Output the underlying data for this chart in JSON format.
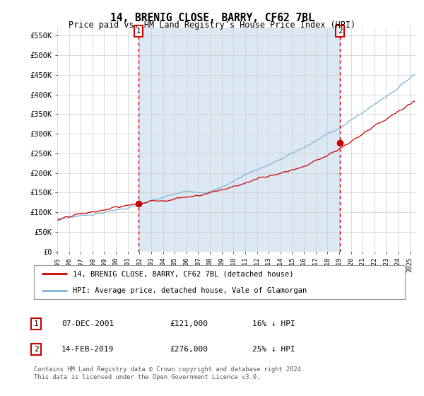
{
  "title": "14, BRENIG CLOSE, BARRY, CF62 7BL",
  "subtitle": "Price paid vs. HM Land Registry's House Price Index (HPI)",
  "ylim": [
    0,
    570000
  ],
  "yticks": [
    0,
    50000,
    100000,
    150000,
    200000,
    250000,
    300000,
    350000,
    400000,
    450000,
    500000,
    550000
  ],
  "ytick_labels": [
    "£0",
    "£50K",
    "£100K",
    "£150K",
    "£200K",
    "£250K",
    "£300K",
    "£350K",
    "£400K",
    "£450K",
    "£500K",
    "£550K"
  ],
  "hpi_color": "#7ab4d8",
  "hpi_fill_color": "#dce9f5",
  "price_color": "#cc0000",
  "marker1_price": 121000,
  "marker2_price": 276000,
  "legend_line1": "14, BRENIG CLOSE, BARRY, CF62 7BL (detached house)",
  "legend_line2": "HPI: Average price, detached house, Vale of Glamorgan",
  "table_row1_num": "1",
  "table_row1_date": "07-DEC-2001",
  "table_row1_price": "£121,000",
  "table_row1_hpi": "16% ↓ HPI",
  "table_row2_num": "2",
  "table_row2_date": "14-FEB-2019",
  "table_row2_price": "£276,000",
  "table_row2_hpi": "25% ↓ HPI",
  "footer": "Contains HM Land Registry data © Crown copyright and database right 2024.\nThis data is licensed under the Open Government Licence v3.0.",
  "bg_color": "#ffffff",
  "grid_color": "#cccccc",
  "marker_box_color": "#cc0000",
  "shade_color": "#dce9f5"
}
